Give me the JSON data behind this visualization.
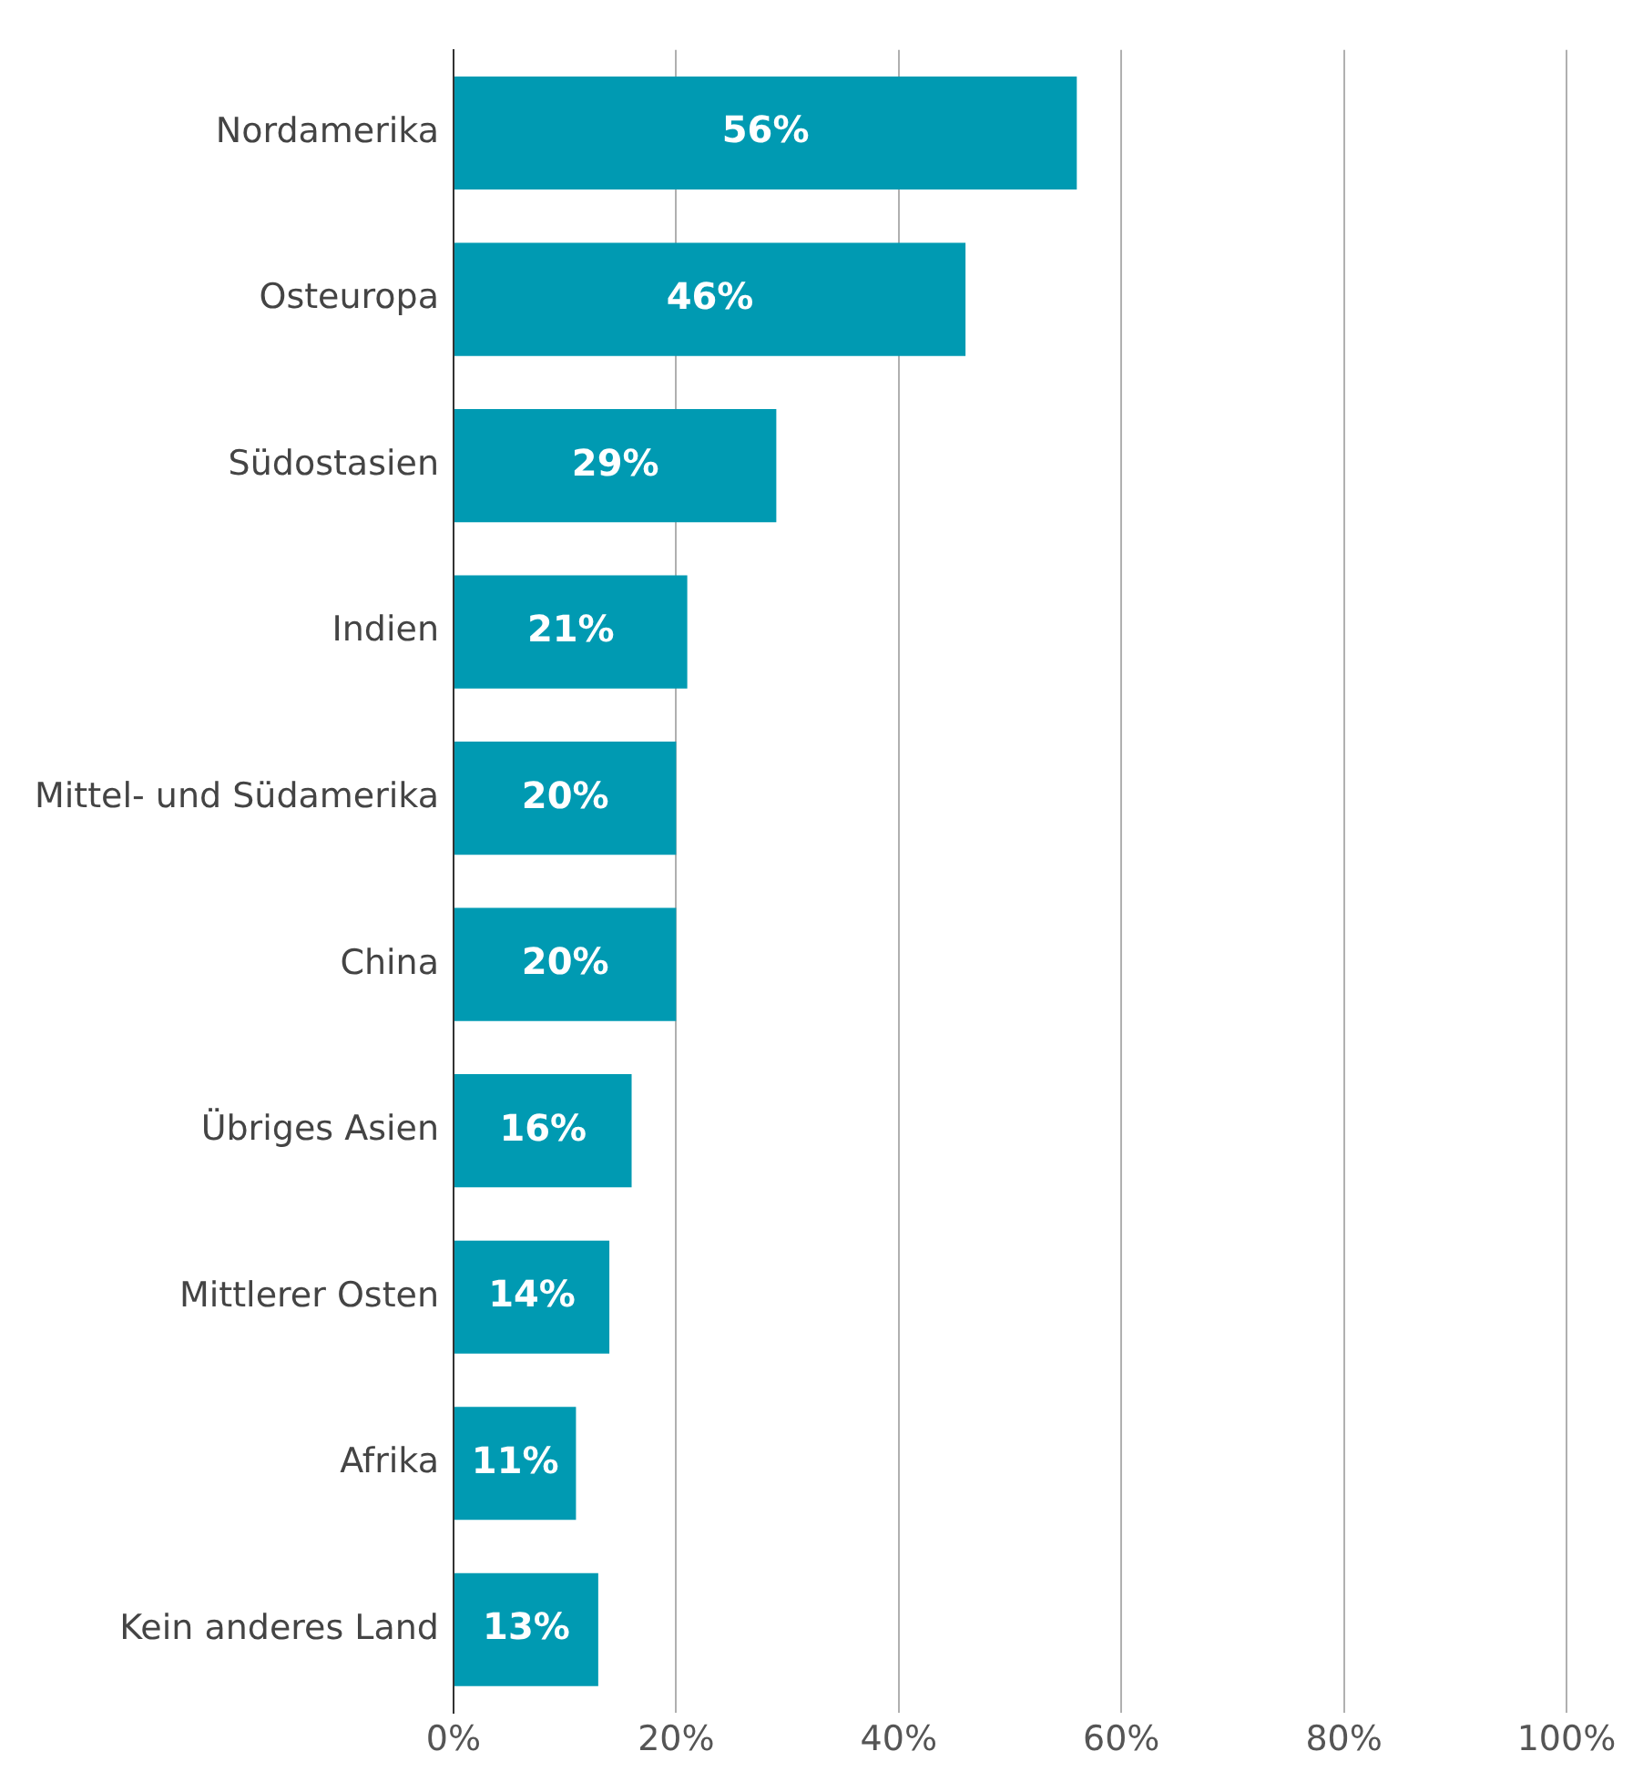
{
  "chart_data": {
    "type": "bar",
    "orientation": "horizontal",
    "categories": [
      "Nordamerika",
      "Osteuropa",
      "Südostasien",
      "Indien",
      "Mittel- und Südamerika",
      "China",
      "Übriges Asien",
      "Mittlerer Osten",
      "Afrika",
      "Kein anderes Land"
    ],
    "values": [
      56,
      46,
      29,
      21,
      20,
      20,
      16,
      14,
      11,
      13
    ],
    "color": "#009ab2",
    "value_labels": [
      "56%",
      "46%",
      "29%",
      "21%",
      "20%",
      "20%",
      "16%",
      "14%",
      "11%",
      "13%"
    ],
    "xlim": [
      0,
      100
    ],
    "xticks": [
      {
        "value": 0,
        "label": "0%"
      },
      {
        "value": 20,
        "label": "20%"
      },
      {
        "value": 40,
        "label": "40%"
      },
      {
        "value": 60,
        "label": "60%"
      },
      {
        "value": 80,
        "label": "80%"
      },
      {
        "value": 100,
        "label": "100%"
      }
    ],
    "grid": "x",
    "legend": false
  }
}
